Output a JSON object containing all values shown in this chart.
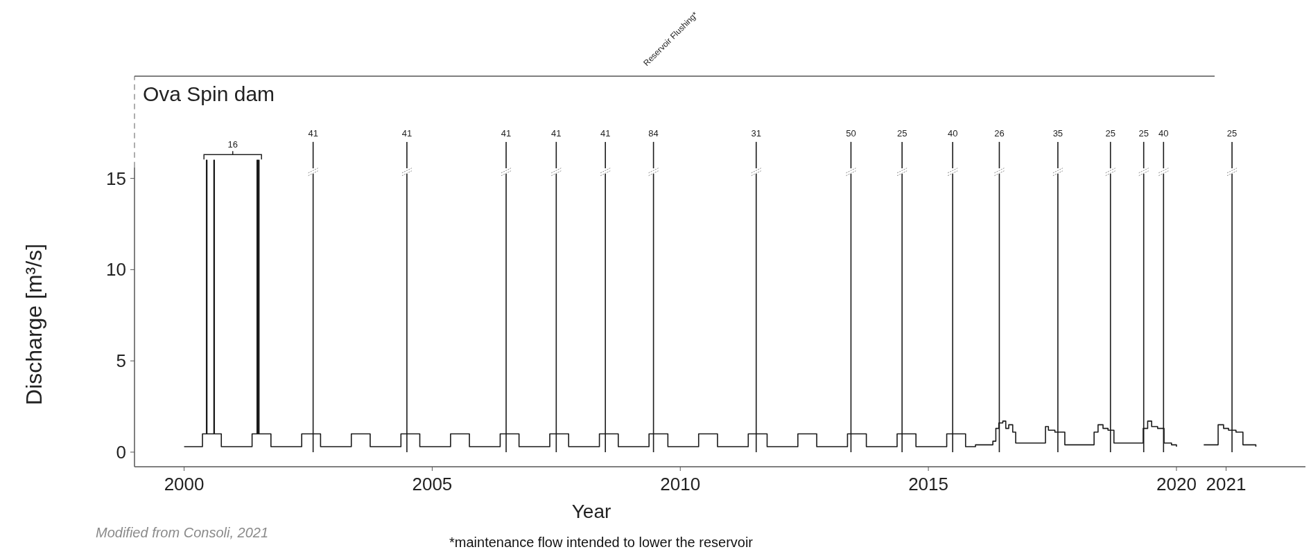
{
  "chart_data": {
    "type": "step",
    "title": "Ova Spin dam",
    "xlabel": "Year",
    "ylabel": "Discharge [m³/s]",
    "xlim": [
      1999.0,
      2022.6
    ],
    "xticks": [
      2000,
      2005,
      2010,
      2015,
      2020,
      2021
    ],
    "ylim": [
      -0.8,
      20.6
    ],
    "yticks": [
      0,
      5,
      10,
      15
    ],
    "series": [
      {
        "color": "#1a1a1a",
        "x": [
          2000.0,
          2000.37,
          2000.45,
          2000.46,
          2000.6,
          2000.61,
          2000.75,
          2001.37,
          2001.47,
          2001.48,
          2001.5,
          2001.51,
          2001.75,
          2002.37,
          2002.75,
          2003.37,
          2003.75,
          2004.37,
          2004.75,
          2005.37,
          2005.75,
          2006.37,
          2006.75,
          2007.37,
          2007.75,
          2008.37,
          2008.75,
          2009.37,
          2009.75,
          2010.37,
          2010.75,
          2011.37,
          2011.75,
          2012.37,
          2012.75,
          2013.37,
          2013.75,
          2014.37,
          2014.75,
          2015.37,
          2015.75,
          2015.95,
          2016.3,
          2016.36,
          2016.42,
          2016.5,
          2016.56,
          2016.62,
          2016.7,
          2016.76,
          2017.36,
          2017.42,
          2017.55,
          2017.75,
          2018.34,
          2018.42,
          2018.52,
          2018.62,
          2018.74,
          2019.33,
          2019.42,
          2019.5,
          2019.62,
          2019.75,
          2019.9,
          2020.0,
          2020.3,
          2020.55,
          2020.84,
          2020.95,
          2021.05,
          2021.2,
          2021.34,
          2021.6
        ],
        "values": [
          0.3,
          1.0,
          16,
          1.0,
          16,
          1.0,
          0.3,
          1.0,
          16,
          1.0,
          16,
          1.0,
          0.3,
          1.0,
          0.3,
          1.0,
          0.3,
          1.0,
          0.3,
          1.0,
          0.3,
          1.0,
          0.3,
          1.0,
          0.3,
          1.0,
          0.3,
          1.0,
          0.3,
          1.0,
          0.3,
          1.0,
          0.3,
          1.0,
          0.3,
          1.0,
          0.3,
          1.0,
          0.3,
          1.0,
          0.3,
          0.4,
          0.6,
          1.3,
          1.6,
          1.7,
          1.3,
          1.5,
          1.1,
          0.5,
          1.4,
          1.2,
          1.1,
          0.4,
          1.1,
          1.5,
          1.3,
          1.2,
          0.5,
          1.3,
          1.7,
          1.4,
          1.3,
          0.5,
          0.4,
          0.3,
          null,
          0.4,
          1.5,
          1.3,
          1.2,
          1.1,
          0.4,
          0.3
        ]
      }
    ],
    "ref_lines": [
      {
        "axis": "x",
        "value": 2002.6
      },
      {
        "axis": "x",
        "value": 2004.49
      },
      {
        "axis": "x",
        "value": 2006.49
      },
      {
        "axis": "x",
        "value": 2007.5
      },
      {
        "axis": "x",
        "value": 2008.49
      },
      {
        "axis": "x",
        "value": 2009.46
      },
      {
        "axis": "x",
        "value": 2011.53
      },
      {
        "axis": "x",
        "value": 2013.44
      },
      {
        "axis": "x",
        "value": 2014.47
      },
      {
        "axis": "x",
        "value": 2015.49
      },
      {
        "axis": "x",
        "value": 2016.43
      },
      {
        "axis": "x",
        "value": 2017.61
      },
      {
        "axis": "x",
        "value": 2018.67
      },
      {
        "axis": "x",
        "value": 2019.34
      },
      {
        "axis": "x",
        "value": 2019.74
      },
      {
        "axis": "x",
        "value": 2021.12
      }
    ],
    "annotations": [
      "16",
      "Reservoir Flushing*",
      "Modified from Consoli, 2021",
      "*maintenance flow intended to lower the reservoir",
      "41",
      "41",
      "41",
      "41",
      "41",
      "84",
      "31",
      "50",
      "25",
      "40",
      "26",
      "35",
      "25",
      "25",
      "40",
      "25"
    ],
    "grid": false
  }
}
